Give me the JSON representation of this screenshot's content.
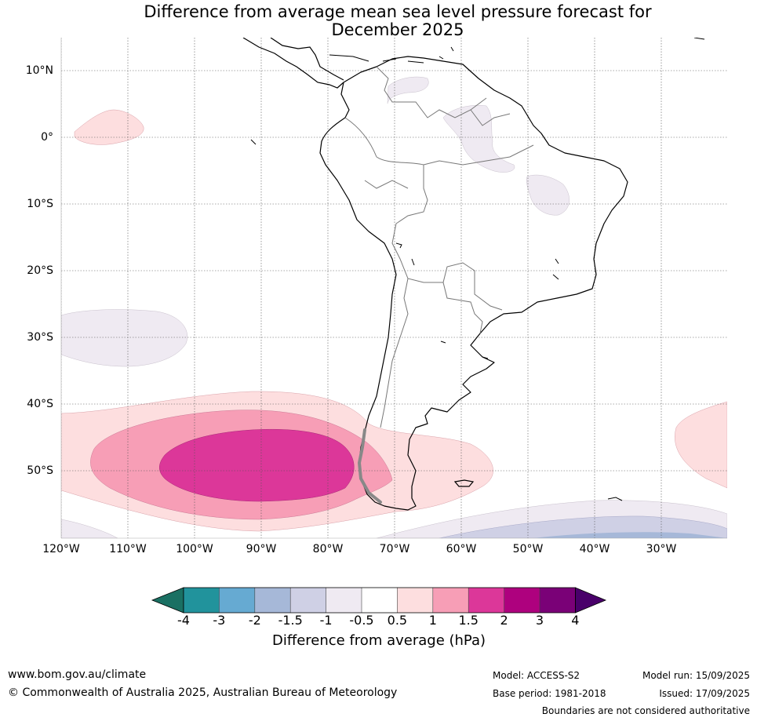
{
  "title_line1": "Difference from average mean sea level pressure forecast for",
  "title_line2": "December 2025",
  "map": {
    "lat_labels": [
      "10°N",
      "0°",
      "10°S",
      "20°S",
      "30°S",
      "40°S",
      "50°S"
    ],
    "lon_labels": [
      "120°W",
      "110°W",
      "100°W",
      "90°W",
      "80°W",
      "70°W",
      "60°W",
      "50°W",
      "40°W",
      "30°W"
    ]
  },
  "colorbar": {
    "ticks": [
      "-4",
      "-3",
      "-2",
      "-1.5",
      "-1",
      "-0.5",
      "0.5",
      "1",
      "1.5",
      "2",
      "3",
      "4"
    ],
    "colors": [
      "#1a7063",
      "#21939c",
      "#66aad2",
      "#a6b8d8",
      "#cfd0e5",
      "#efeaf2",
      "#ffffff",
      "#fddedf",
      "#f79eb6",
      "#dc3799",
      "#ae017e",
      "#7a0177",
      "#49006a"
    ],
    "label": "Difference from average (hPa)"
  },
  "footer": {
    "website": "www.bom.gov.au/climate",
    "copyright": "© Commonwealth of Australia 2025, Australian Bureau of Meteorology",
    "model": "Model: ACCESS-S2",
    "base_period": "Base period: 1981-2018",
    "model_run": "Model run: 15/09/2025",
    "issued": "Issued: 17/09/2025",
    "disclaimer": "Boundaries are not considered authoritative"
  }
}
